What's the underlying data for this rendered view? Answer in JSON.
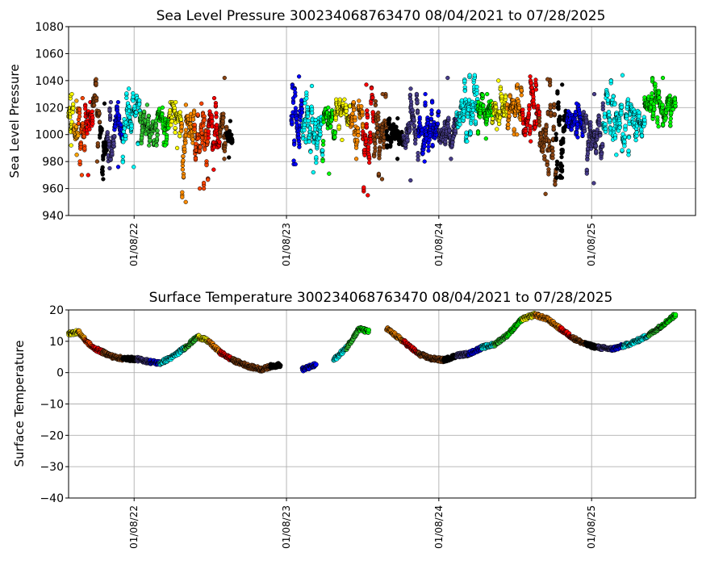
{
  "chart_data": [
    {
      "type": "scatter",
      "title": "Sea Level Pressure 300234068763470  08/04/2021 to 07/28/2025",
      "xlabel": "",
      "ylabel": "Sea Level Pressure",
      "ylim": [
        940,
        1080
      ],
      "yticks": [
        "940",
        "960",
        "980",
        "1000",
        "1020",
        "1040",
        "1060",
        "1080"
      ],
      "xlim": [
        "2021-08-04",
        "2025-09-14"
      ],
      "xticks": [
        {
          "date": "2022-01-08",
          "label": "01/08/22"
        },
        {
          "date": "2023-01-08",
          "label": "01/08/23"
        },
        {
          "date": "2024-01-08",
          "label": "01/08/24"
        },
        {
          "date": "2025-01-08",
          "label": "01/08/25"
        }
      ],
      "grid": true,
      "segments": [
        {
          "start": "2021-08-04",
          "end": "2021-08-16",
          "color": "#ffff00",
          "mean": 1015,
          "min": 992,
          "max": 1030
        },
        {
          "start": "2021-08-16",
          "end": "2021-08-28",
          "color": "#ffa500",
          "mean": 1008,
          "min": 985,
          "max": 1025
        },
        {
          "start": "2021-08-28",
          "end": "2021-09-12",
          "color": "#ff4500",
          "mean": 1004,
          "min": 970,
          "max": 1027
        },
        {
          "start": "2021-09-12",
          "end": "2021-10-01",
          "color": "#ff0000",
          "mean": 1006,
          "min": 970,
          "max": 1024
        },
        {
          "start": "2021-10-01",
          "end": "2021-10-18",
          "color": "#8b4513",
          "mean": 1014,
          "min": 980,
          "max": 1041
        },
        {
          "start": "2021-10-18",
          "end": "2021-11-04",
          "color": "#000000",
          "mean": 998,
          "min": 967,
          "max": 1023
        },
        {
          "start": "2021-11-04",
          "end": "2021-11-22",
          "color": "#483d8b",
          "mean": 1002,
          "min": 975,
          "max": 1024
        },
        {
          "start": "2021-11-22",
          "end": "2021-12-12",
          "color": "#0000ff",
          "mean": 1004,
          "min": 976,
          "max": 1024
        },
        {
          "start": "2021-12-12",
          "end": "2022-01-22",
          "color": "#00ffff",
          "mean": 1010,
          "min": 976,
          "max": 1034
        },
        {
          "start": "2022-01-22",
          "end": "2022-03-05",
          "color": "#32cd32",
          "mean": 1012,
          "min": 992,
          "max": 1022
        },
        {
          "start": "2022-03-05",
          "end": "2022-04-02",
          "color": "#00ff00",
          "mean": 1011,
          "min": 992,
          "max": 1020
        },
        {
          "start": "2022-04-02",
          "end": "2022-05-01",
          "color": "#ffff00",
          "mean": 1014,
          "min": 990,
          "max": 1024
        },
        {
          "start": "2022-05-01",
          "end": "2022-06-02",
          "color": "#ff8c00",
          "mean": 1006,
          "min": 950,
          "max": 1022
        },
        {
          "start": "2022-06-02",
          "end": "2022-07-05",
          "color": "#ff4500",
          "mean": 1002,
          "min": 960,
          "max": 1023
        },
        {
          "start": "2022-07-05",
          "end": "2022-08-02",
          "color": "#ff0000",
          "mean": 1005,
          "min": 974,
          "max": 1027
        },
        {
          "start": "2022-08-02",
          "end": "2022-08-18",
          "color": "#8b4513",
          "mean": 1008,
          "min": 982,
          "max": 1042
        },
        {
          "start": "2022-08-18",
          "end": "2022-09-01",
          "color": "#000000",
          "mean": 998,
          "min": 983,
          "max": 1010
        },
        {
          "start": "2023-01-20",
          "end": "2023-02-15",
          "color": "#0000ff",
          "mean": 1010,
          "min": 978,
          "max": 1043
        },
        {
          "start": "2023-02-15",
          "end": "2023-04-05",
          "color": "#00ffff",
          "mean": 1004,
          "min": 972,
          "max": 1036
        },
        {
          "start": "2023-04-05",
          "end": "2023-05-05",
          "color": "#00ff00",
          "mean": 1007,
          "min": 971,
          "max": 1020
        },
        {
          "start": "2023-05-05",
          "end": "2023-06-10",
          "color": "#ffff00",
          "mean": 1014,
          "min": 996,
          "max": 1026
        },
        {
          "start": "2023-06-10",
          "end": "2023-07-10",
          "color": "#ff8c00",
          "mean": 1010,
          "min": 982,
          "max": 1025
        },
        {
          "start": "2023-07-10",
          "end": "2023-08-05",
          "color": "#ff0000",
          "mean": 1002,
          "min": 955,
          "max": 1037
        },
        {
          "start": "2023-08-05",
          "end": "2023-09-05",
          "color": "#8b4513",
          "mean": 1004,
          "min": 967,
          "max": 1030
        },
        {
          "start": "2023-09-05",
          "end": "2023-10-15",
          "color": "#000000",
          "mean": 1000,
          "min": 982,
          "max": 1012
        },
        {
          "start": "2023-10-15",
          "end": "2023-11-20",
          "color": "#483d8b",
          "mean": 1002,
          "min": 966,
          "max": 1034
        },
        {
          "start": "2023-11-20",
          "end": "2024-01-08",
          "color": "#0000ff",
          "mean": 1005,
          "min": 980,
          "max": 1030
        },
        {
          "start": "2024-01-08",
          "end": "2024-02-20",
          "color": "#483d8b",
          "mean": 1008,
          "min": 982,
          "max": 1042
        },
        {
          "start": "2024-02-20",
          "end": "2024-04-10",
          "color": "#00ffff",
          "mean": 1016,
          "min": 995,
          "max": 1044
        },
        {
          "start": "2024-04-10",
          "end": "2024-05-15",
          "color": "#00ff00",
          "mean": 1016,
          "min": 997,
          "max": 1030
        },
        {
          "start": "2024-05-15",
          "end": "2024-06-20",
          "color": "#ffff00",
          "mean": 1018,
          "min": 1004,
          "max": 1040
        },
        {
          "start": "2024-06-20",
          "end": "2024-07-25",
          "color": "#ff8c00",
          "mean": 1016,
          "min": 1000,
          "max": 1037
        },
        {
          "start": "2024-07-25",
          "end": "2024-09-05",
          "color": "#ff0000",
          "mean": 1014,
          "min": 995,
          "max": 1043
        },
        {
          "start": "2024-09-05",
          "end": "2024-10-15",
          "color": "#8b4513",
          "mean": 1000,
          "min": 956,
          "max": 1041
        },
        {
          "start": "2024-10-15",
          "end": "2024-11-10",
          "color": "#000000",
          "mean": 1006,
          "min": 968,
          "max": 1037
        },
        {
          "start": "2024-11-10",
          "end": "2024-12-20",
          "color": "#0000ff",
          "mean": 1012,
          "min": 998,
          "max": 1023
        },
        {
          "start": "2024-12-20",
          "end": "2025-02-05",
          "color": "#483d8b",
          "mean": 1004,
          "min": 964,
          "max": 1030
        },
        {
          "start": "2025-02-05",
          "end": "2025-05-15",
          "color": "#00ffff",
          "mean": 1014,
          "min": 985,
          "max": 1044
        },
        {
          "start": "2025-05-15",
          "end": "2025-07-28",
          "color": "#00ff00",
          "mean": 1022,
          "min": 1006,
          "max": 1042
        }
      ]
    },
    {
      "type": "scatter",
      "title": "Surface Temperature 300234068763470  08/04/2021 to 07/28/2025",
      "xlabel": "",
      "ylabel": "Surface Temperature",
      "ylim": [
        -40,
        20
      ],
      "yticks": [
        "−40",
        "−30",
        "−20",
        "−10",
        "0",
        "10",
        "20"
      ],
      "xlim": [
        "2021-08-04",
        "2025-09-14"
      ],
      "xticks": [
        {
          "date": "2022-01-08",
          "label": "01/08/22"
        },
        {
          "date": "2023-01-08",
          "label": "01/08/23"
        },
        {
          "date": "2024-01-08",
          "label": "01/08/24"
        },
        {
          "date": "2025-01-08",
          "label": "01/08/25"
        }
      ],
      "grid": true,
      "points": [
        {
          "date": "2021-08-04",
          "value": 12.5,
          "color": "#ffff00"
        },
        {
          "date": "2021-08-28",
          "value": 13.0,
          "color": "#ffa500"
        },
        {
          "date": "2021-09-12",
          "value": 10.5,
          "color": "#ff4500"
        },
        {
          "date": "2021-10-01",
          "value": 8.0,
          "color": "#ff0000"
        },
        {
          "date": "2021-10-25",
          "value": 6.5,
          "color": "#8b4513"
        },
        {
          "date": "2021-11-20",
          "value": 5.0,
          "color": "#8b4513"
        },
        {
          "date": "2021-12-12",
          "value": 4.5,
          "color": "#000000"
        },
        {
          "date": "2022-01-15",
          "value": 4.3,
          "color": "#483d8b"
        },
        {
          "date": "2022-02-15",
          "value": 3.5,
          "color": "#0000ff"
        },
        {
          "date": "2022-03-10",
          "value": 3.0,
          "color": "#00ffff"
        },
        {
          "date": "2022-04-10",
          "value": 5.0,
          "color": "#00ffff"
        },
        {
          "date": "2022-05-10",
          "value": 8.0,
          "color": "#32cd32"
        },
        {
          "date": "2022-06-10",
          "value": 11.5,
          "color": "#ffff00"
        },
        {
          "date": "2022-07-05",
          "value": 10.0,
          "color": "#ff8c00"
        },
        {
          "date": "2022-08-02",
          "value": 6.5,
          "color": "#ff0000"
        },
        {
          "date": "2022-09-01",
          "value": 4.0,
          "color": "#8b4513"
        },
        {
          "date": "2022-10-10",
          "value": 2.0,
          "color": "#8b4513"
        },
        {
          "date": "2022-11-10",
          "value": 1.0,
          "color": "#8b4513"
        },
        {
          "date": "2022-12-01",
          "value": 2.0,
          "color": "#000000"
        },
        {
          "date": "2022-12-25",
          "value": 2.5,
          "color": "#000000"
        },
        {
          "date": "2023-02-15",
          "value": 1.0,
          "color": "#0000ff"
        },
        {
          "date": "2023-03-20",
          "value": 2.5,
          "color": "#00ffff"
        },
        {
          "date": "2023-05-01",
          "value": 4.0,
          "color": "#00ffff"
        },
        {
          "date": "2023-06-01",
          "value": 8.0,
          "color": "#32cd32"
        },
        {
          "date": "2023-07-01",
          "value": 14.0,
          "color": "#00ff00"
        },
        {
          "date": "2023-07-25",
          "value": 13.0,
          "color": "#ffff00"
        },
        {
          "date": "2023-09-05",
          "value": 14.0,
          "color": "#ff8c00"
        },
        {
          "date": "2023-10-15",
          "value": 10.0,
          "color": "#ff0000"
        },
        {
          "date": "2023-11-20",
          "value": 6.0,
          "color": "#8b4513"
        },
        {
          "date": "2023-12-20",
          "value": 4.5,
          "color": "#8b4513"
        },
        {
          "date": "2024-01-20",
          "value": 4.0,
          "color": "#000000"
        },
        {
          "date": "2024-02-20",
          "value": 5.5,
          "color": "#483d8b"
        },
        {
          "date": "2024-03-20",
          "value": 6.0,
          "color": "#0000ff"
        },
        {
          "date": "2024-04-20",
          "value": 8.0,
          "color": "#00ffff"
        },
        {
          "date": "2024-05-20",
          "value": 9.0,
          "color": "#32cd32"
        },
        {
          "date": "2024-06-20",
          "value": 12.0,
          "color": "#00ff00"
        },
        {
          "date": "2024-07-25",
          "value": 17.0,
          "color": "#ffff00"
        },
        {
          "date": "2024-08-25",
          "value": 18.5,
          "color": "#ff8c00"
        },
        {
          "date": "2024-09-25",
          "value": 17.0,
          "color": "#ff8c00"
        },
        {
          "date": "2024-10-25",
          "value": 14.0,
          "color": "#ff0000"
        },
        {
          "date": "2024-11-25",
          "value": 11.0,
          "color": "#8b4513"
        },
        {
          "date": "2024-12-25",
          "value": 9.0,
          "color": "#000000"
        },
        {
          "date": "2025-01-25",
          "value": 8.0,
          "color": "#483d8b"
        },
        {
          "date": "2025-02-25",
          "value": 7.5,
          "color": "#0000ff"
        },
        {
          "date": "2025-03-25",
          "value": 8.5,
          "color": "#00ffff"
        },
        {
          "date": "2025-04-25",
          "value": 10.0,
          "color": "#00ffff"
        },
        {
          "date": "2025-05-25",
          "value": 12.0,
          "color": "#32cd32"
        },
        {
          "date": "2025-06-25",
          "value": 15.0,
          "color": "#00ff00"
        },
        {
          "date": "2025-07-28",
          "value": 18.5,
          "color": "#00ff00"
        }
      ]
    }
  ]
}
